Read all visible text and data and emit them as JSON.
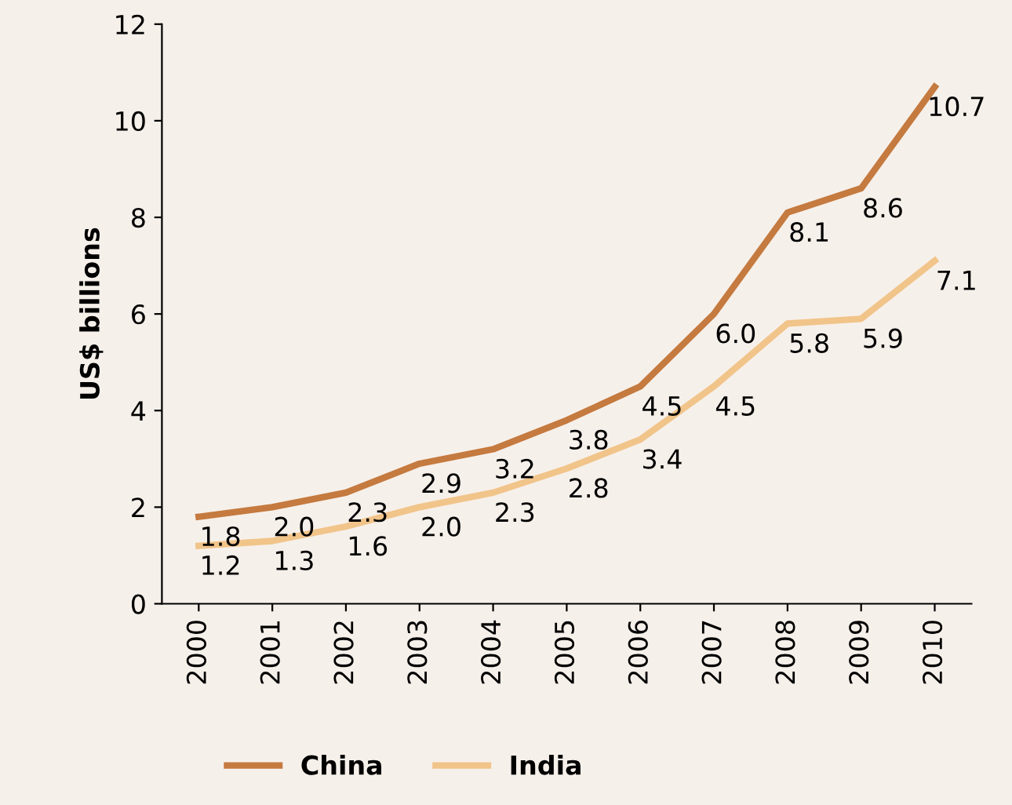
{
  "chart_data": {
    "type": "line",
    "ylabel": "US$ billions",
    "categories": [
      "2000",
      "2001",
      "2002",
      "2003",
      "2004",
      "2005",
      "2006",
      "2007",
      "2008",
      "2009",
      "2010"
    ],
    "series": [
      {
        "name": "China",
        "color": "#c57a3f",
        "values": [
          1.8,
          2.0,
          2.3,
          2.9,
          3.2,
          3.8,
          4.5,
          6.0,
          8.1,
          8.6,
          10.7
        ],
        "value_labels": [
          "1.8",
          "2.0",
          "2.3",
          "2.9",
          "3.2",
          "3.8",
          "4.5",
          "6.0",
          "8.1",
          "8.6",
          "10.7"
        ]
      },
      {
        "name": "India",
        "color": "#f1c48a",
        "values": [
          1.2,
          1.3,
          1.6,
          2.0,
          2.3,
          2.8,
          3.4,
          4.5,
          5.8,
          5.9,
          7.1
        ],
        "value_labels": [
          "1.2",
          "1.3",
          "1.6",
          "2.0",
          "2.3",
          "2.8",
          "3.4",
          "4.5",
          "5.8",
          "5.9",
          "7.1"
        ]
      }
    ],
    "ylim": [
      0,
      12
    ],
    "yticks": [
      0,
      2,
      4,
      6,
      8,
      10,
      12
    ],
    "grid": false,
    "legend": "bottom",
    "marker": "none",
    "line_style": "solid"
  }
}
